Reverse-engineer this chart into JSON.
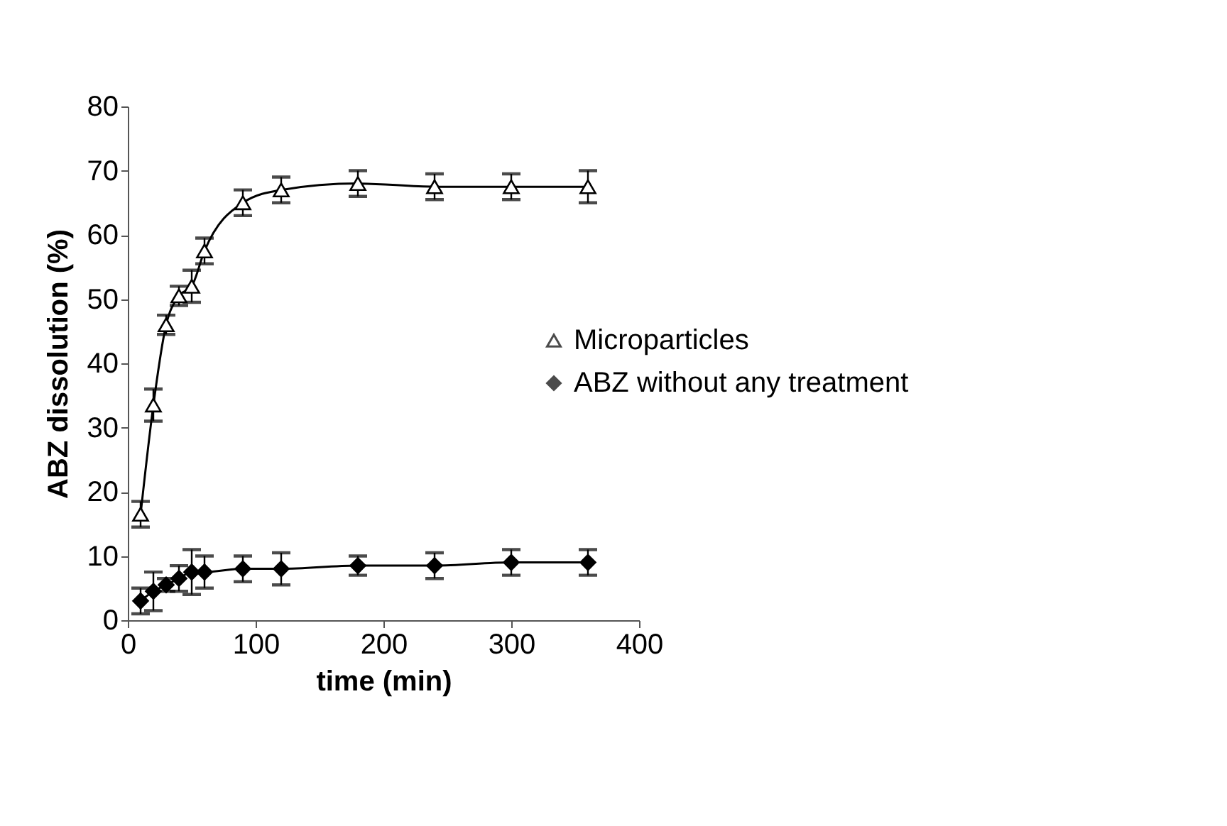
{
  "chart_data": {
    "type": "line",
    "xlabel": "time (min)",
    "ylabel": "ABZ dissolution (%)",
    "x": [
      10,
      20,
      30,
      40,
      50,
      60,
      90,
      120,
      180,
      240,
      300,
      360
    ],
    "series": [
      {
        "name": "Microparticles",
        "color": "#000000",
        "marker": "triangle",
        "values": [
          16.5,
          33.5,
          46,
          50.5,
          52,
          57.5,
          65,
          67,
          68,
          67.5,
          67.5,
          67.5
        ],
        "errors": [
          2,
          2.5,
          1.5,
          1.5,
          2.5,
          2,
          2,
          2,
          2,
          2,
          2,
          2.5
        ]
      },
      {
        "name": "ABZ without any treatment",
        "color": "#000000",
        "marker": "diamond",
        "values": [
          3,
          4.5,
          5.5,
          6.5,
          7.5,
          7.5,
          8,
          8,
          8.5,
          8.5,
          9,
          9
        ],
        "errors": [
          2,
          3,
          1,
          2,
          3.5,
          2.5,
          2,
          2.5,
          1.5,
          2,
          2,
          2
        ]
      }
    ],
    "xlim": [
      0,
      400
    ],
    "xticks": [
      0,
      100,
      200,
      300,
      400
    ],
    "ylim": [
      0,
      80
    ],
    "yticks": [
      0,
      10,
      20,
      30,
      40,
      50,
      60,
      70,
      80
    ],
    "grid": false,
    "legend": "right",
    "line_style": "solid"
  }
}
